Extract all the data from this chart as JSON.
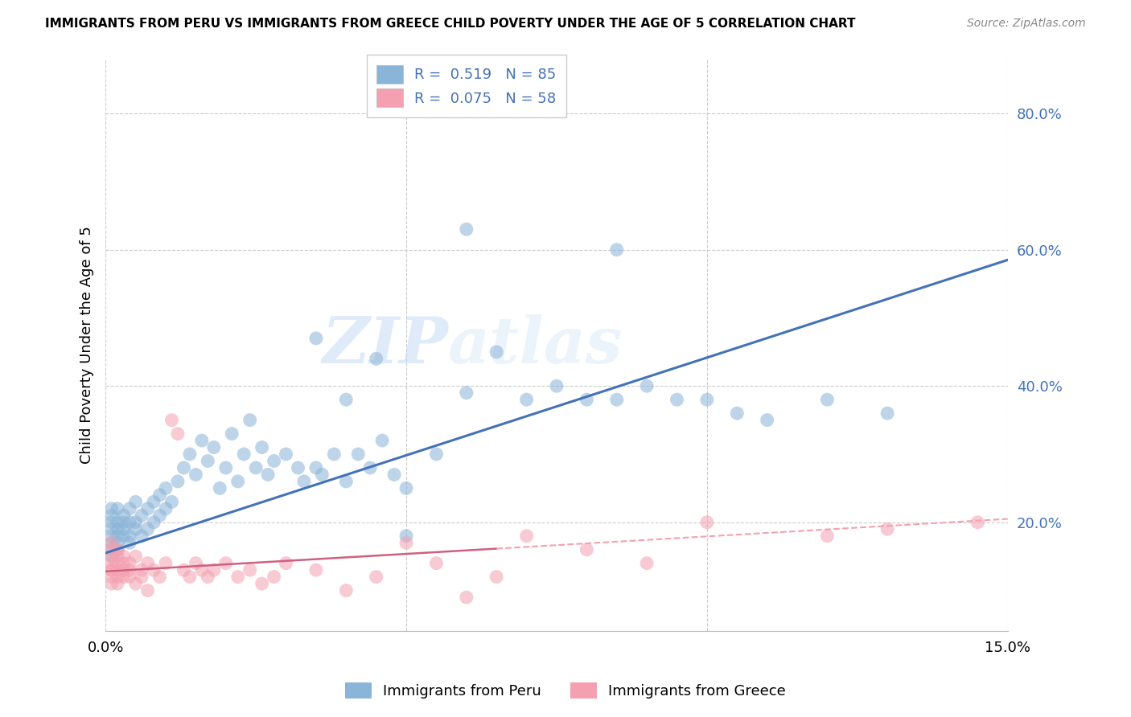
{
  "title": "IMMIGRANTS FROM PERU VS IMMIGRANTS FROM GREECE CHILD POVERTY UNDER THE AGE OF 5 CORRELATION CHART",
  "source": "Source: ZipAtlas.com",
  "ylabel": "Child Poverty Under the Age of 5",
  "xlim": [
    0.0,
    0.15
  ],
  "ylim": [
    0.04,
    0.88
  ],
  "y_ticks_right": [
    0.2,
    0.4,
    0.6,
    0.8
  ],
  "y_tick_labels_right": [
    "20.0%",
    "40.0%",
    "60.0%",
    "80.0%"
  ],
  "grid_color": "#cccccc",
  "background_color": "#ffffff",
  "peru_color": "#8ab4d8",
  "peru_color_dark": "#4472b8",
  "greece_color": "#f4a0b0",
  "greece_color_dark": "#d06080",
  "peru_R": 0.519,
  "peru_N": 85,
  "greece_R": 0.075,
  "greece_N": 58,
  "legend_label_peru": "Immigrants from Peru",
  "legend_label_greece": "Immigrants from Greece",
  "peru_line_x0": 0.0,
  "peru_line_y0": 0.155,
  "peru_line_x1": 0.15,
  "peru_line_y1": 0.585,
  "greece_line_x0": 0.0,
  "greece_line_y0": 0.128,
  "greece_line_x1": 0.15,
  "greece_line_y1": 0.205,
  "watermark_text": "ZIPatlas",
  "peru_scatter_x": [
    0.001,
    0.001,
    0.001,
    0.001,
    0.001,
    0.001,
    0.001,
    0.001,
    0.002,
    0.002,
    0.002,
    0.002,
    0.002,
    0.002,
    0.003,
    0.003,
    0.003,
    0.003,
    0.004,
    0.004,
    0.004,
    0.004,
    0.005,
    0.005,
    0.005,
    0.006,
    0.006,
    0.007,
    0.007,
    0.008,
    0.008,
    0.009,
    0.009,
    0.01,
    0.01,
    0.011,
    0.012,
    0.013,
    0.014,
    0.015,
    0.016,
    0.017,
    0.018,
    0.019,
    0.02,
    0.021,
    0.022,
    0.023,
    0.024,
    0.025,
    0.026,
    0.027,
    0.028,
    0.03,
    0.032,
    0.033,
    0.035,
    0.036,
    0.038,
    0.04,
    0.042,
    0.044,
    0.046,
    0.048,
    0.05,
    0.055,
    0.06,
    0.065,
    0.07,
    0.075,
    0.08,
    0.085,
    0.09,
    0.095,
    0.1,
    0.105,
    0.11,
    0.12,
    0.13,
    0.085,
    0.06,
    0.045,
    0.05,
    0.035,
    0.04
  ],
  "peru_scatter_y": [
    0.18,
    0.2,
    0.17,
    0.19,
    0.16,
    0.21,
    0.15,
    0.22,
    0.19,
    0.2,
    0.18,
    0.16,
    0.22,
    0.17,
    0.2,
    0.18,
    0.21,
    0.19,
    0.2,
    0.22,
    0.17,
    0.18,
    0.19,
    0.23,
    0.2,
    0.21,
    0.18,
    0.22,
    0.19,
    0.23,
    0.2,
    0.24,
    0.21,
    0.22,
    0.25,
    0.23,
    0.26,
    0.28,
    0.3,
    0.27,
    0.32,
    0.29,
    0.31,
    0.25,
    0.28,
    0.33,
    0.26,
    0.3,
    0.35,
    0.28,
    0.31,
    0.27,
    0.29,
    0.3,
    0.28,
    0.26,
    0.28,
    0.27,
    0.3,
    0.38,
    0.3,
    0.28,
    0.32,
    0.27,
    0.25,
    0.3,
    0.39,
    0.45,
    0.38,
    0.4,
    0.38,
    0.38,
    0.4,
    0.38,
    0.38,
    0.36,
    0.35,
    0.38,
    0.36,
    0.6,
    0.63,
    0.44,
    0.18,
    0.47,
    0.26
  ],
  "greece_scatter_x": [
    0.001,
    0.001,
    0.001,
    0.001,
    0.001,
    0.001,
    0.001,
    0.001,
    0.002,
    0.002,
    0.002,
    0.002,
    0.002,
    0.002,
    0.003,
    0.003,
    0.003,
    0.003,
    0.004,
    0.004,
    0.004,
    0.005,
    0.005,
    0.006,
    0.006,
    0.007,
    0.007,
    0.008,
    0.009,
    0.01,
    0.011,
    0.012,
    0.013,
    0.014,
    0.015,
    0.016,
    0.017,
    0.018,
    0.02,
    0.022,
    0.024,
    0.026,
    0.028,
    0.03,
    0.035,
    0.04,
    0.045,
    0.05,
    0.055,
    0.06,
    0.065,
    0.07,
    0.08,
    0.09,
    0.1,
    0.12,
    0.13,
    0.145
  ],
  "greece_scatter_y": [
    0.14,
    0.16,
    0.13,
    0.15,
    0.12,
    0.17,
    0.11,
    0.13,
    0.15,
    0.14,
    0.12,
    0.16,
    0.13,
    0.11,
    0.14,
    0.13,
    0.12,
    0.15,
    0.13,
    0.14,
    0.12,
    0.15,
    0.11,
    0.13,
    0.12,
    0.14,
    0.1,
    0.13,
    0.12,
    0.14,
    0.35,
    0.33,
    0.13,
    0.12,
    0.14,
    0.13,
    0.12,
    0.13,
    0.14,
    0.12,
    0.13,
    0.11,
    0.12,
    0.14,
    0.13,
    0.1,
    0.12,
    0.17,
    0.14,
    0.09,
    0.12,
    0.18,
    0.16,
    0.14,
    0.2,
    0.18,
    0.19,
    0.2
  ]
}
